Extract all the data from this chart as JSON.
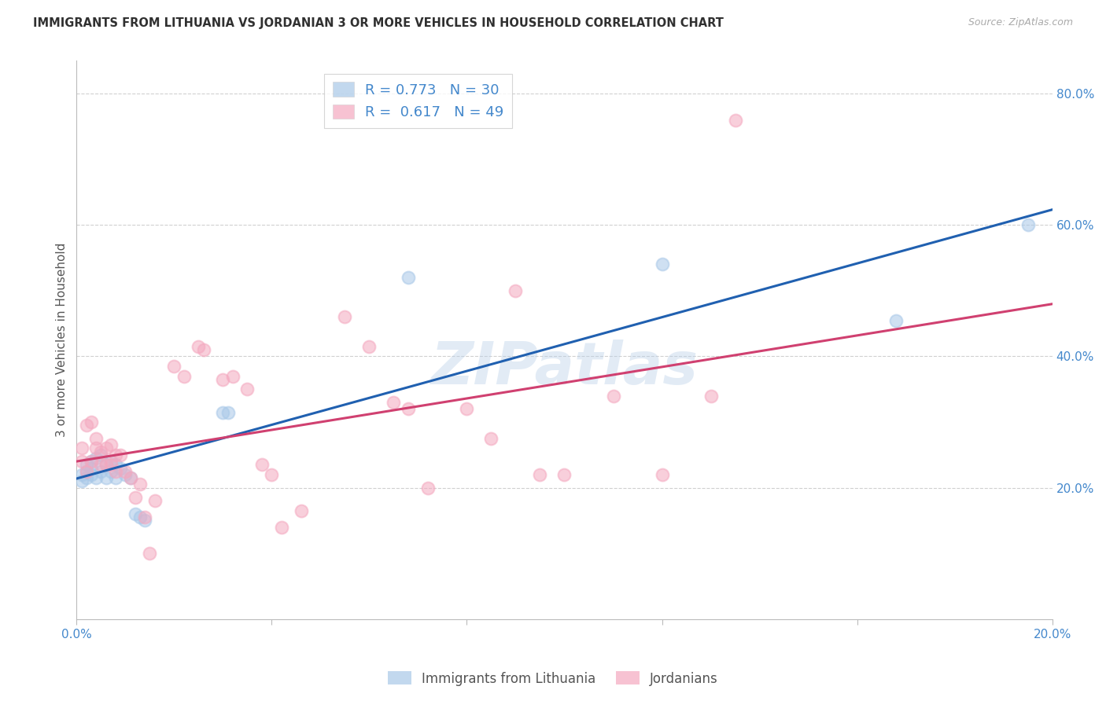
{
  "title": "IMMIGRANTS FROM LITHUANIA VS JORDANIAN 3 OR MORE VEHICLES IN HOUSEHOLD CORRELATION CHART",
  "source": "Source: ZipAtlas.com",
  "ylabel": "3 or more Vehicles in Household",
  "xlim": [
    0.0,
    0.2
  ],
  "ylim": [
    0.0,
    0.85
  ],
  "x_ticks": [
    0.0,
    0.04,
    0.08,
    0.12,
    0.16,
    0.2
  ],
  "x_tick_labels": [
    "0.0%",
    "",
    "",
    "",
    "",
    "20.0%"
  ],
  "y_ticks_right": [
    0.2,
    0.4,
    0.6,
    0.8
  ],
  "y_tick_labels_right": [
    "20.0%",
    "40.0%",
    "60.0%",
    "80.0%"
  ],
  "legend_label1": "Immigrants from Lithuania",
  "legend_label2": "Jordanians",
  "blue_color": "#a8c8e8",
  "pink_color": "#f4a8bf",
  "blue_line_color": "#2060b0",
  "pink_line_color": "#d04070",
  "blue_points_x": [
    0.001,
    0.001,
    0.002,
    0.002,
    0.002,
    0.003,
    0.003,
    0.003,
    0.004,
    0.004,
    0.005,
    0.005,
    0.006,
    0.006,
    0.007,
    0.007,
    0.008,
    0.008,
    0.009,
    0.01,
    0.011,
    0.012,
    0.013,
    0.014,
    0.03,
    0.031,
    0.068,
    0.12,
    0.168,
    0.195
  ],
  "blue_points_y": [
    0.22,
    0.21,
    0.235,
    0.225,
    0.215,
    0.23,
    0.24,
    0.22,
    0.245,
    0.215,
    0.25,
    0.225,
    0.235,
    0.215,
    0.24,
    0.225,
    0.235,
    0.215,
    0.23,
    0.22,
    0.215,
    0.16,
    0.155,
    0.15,
    0.315,
    0.315,
    0.52,
    0.54,
    0.455,
    0.6
  ],
  "pink_points_x": [
    0.001,
    0.001,
    0.002,
    0.002,
    0.003,
    0.003,
    0.004,
    0.004,
    0.005,
    0.005,
    0.006,
    0.006,
    0.007,
    0.007,
    0.008,
    0.008,
    0.009,
    0.01,
    0.011,
    0.012,
    0.013,
    0.014,
    0.015,
    0.016,
    0.02,
    0.022,
    0.025,
    0.026,
    0.03,
    0.032,
    0.035,
    0.038,
    0.04,
    0.042,
    0.046,
    0.055,
    0.06,
    0.065,
    0.068,
    0.072,
    0.08,
    0.085,
    0.09,
    0.095,
    0.1,
    0.11,
    0.12,
    0.13,
    0.135
  ],
  "pink_points_y": [
    0.26,
    0.24,
    0.295,
    0.225,
    0.3,
    0.24,
    0.275,
    0.26,
    0.255,
    0.235,
    0.26,
    0.235,
    0.265,
    0.235,
    0.25,
    0.225,
    0.25,
    0.225,
    0.215,
    0.185,
    0.205,
    0.155,
    0.1,
    0.18,
    0.385,
    0.37,
    0.415,
    0.41,
    0.365,
    0.37,
    0.35,
    0.235,
    0.22,
    0.14,
    0.165,
    0.46,
    0.415,
    0.33,
    0.32,
    0.2,
    0.32,
    0.275,
    0.5,
    0.22,
    0.22,
    0.34,
    0.22,
    0.34,
    0.76
  ],
  "watermark": "ZIPatlas",
  "grid_color": "#d0d0d0",
  "background_color": "#ffffff",
  "title_color": "#303030",
  "axis_label_color": "#555555",
  "right_tick_color": "#4488cc",
  "bottom_tick_color": "#4488cc"
}
